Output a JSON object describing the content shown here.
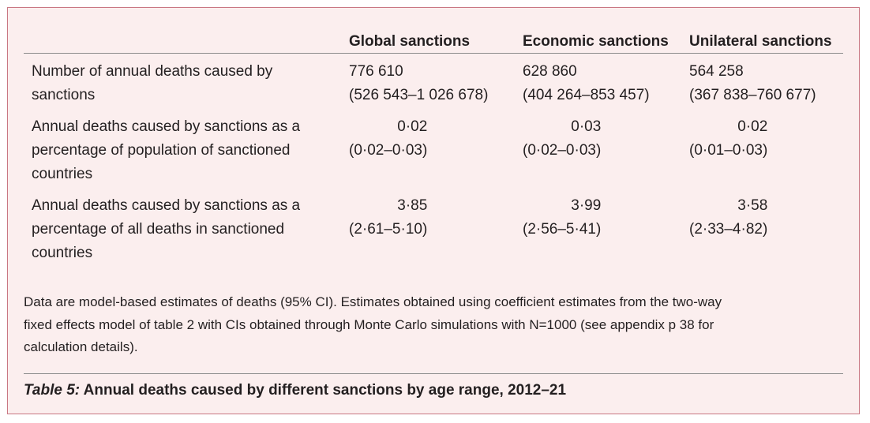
{
  "table": {
    "columns": [
      "Global sanctions",
      "Economic sanctions",
      "Unilateral sanctions"
    ],
    "rows": [
      {
        "label": [
          "Number of annual deaths caused by",
          "sanctions"
        ],
        "cells": [
          {
            "estimate": "776 610",
            "ci": "(526 543–1 026 678)"
          },
          {
            "estimate": "628 860",
            "ci": "(404 264–853 457)"
          },
          {
            "estimate": "564 258",
            "ci": "(367 838–760 677)"
          }
        ],
        "align": "left"
      },
      {
        "label": [
          "Annual deaths caused by sanctions as a",
          "percentage of population of sanctioned",
          "countries"
        ],
        "cells": [
          {
            "estimate": "0·02",
            "ci": "(0·02–0·03)"
          },
          {
            "estimate": "0·03",
            "ci": "(0·02–0·03)"
          },
          {
            "estimate": "0·02",
            "ci": "(0·01–0·03)"
          }
        ],
        "align": "right"
      },
      {
        "label": [
          "Annual deaths caused by sanctions as a",
          "percentage of all deaths in sanctioned",
          "countries"
        ],
        "cells": [
          {
            "estimate": "3·85",
            "ci": "(2·61–5·10)"
          },
          {
            "estimate": "3·99",
            "ci": "(2·56–5·41)"
          },
          {
            "estimate": "3·58",
            "ci": "(2·33–4·82)"
          }
        ],
        "align": "right"
      }
    ]
  },
  "footnote": [
    "Data are model-based estimates of deaths (95% CI). Estimates obtained using coefficient estimates from the two-way",
    "fixed effects model of table 2 with CIs obtained through Monte Carlo simulations with N=1000 (see appendix p 38 for",
    "calculation details)."
  ],
  "caption": {
    "label": "Table 5:",
    "text": "Annual deaths caused by different sanctions by age range, 2012–21"
  }
}
